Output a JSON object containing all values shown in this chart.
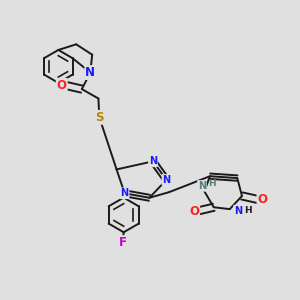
{
  "background_color": "#e0e0e0",
  "bond_color": "#1a1a1a",
  "bond_width": 1.4,
  "dbo": 0.012,
  "atom_colors": {
    "N": "#1a1aff",
    "O": "#ff2020",
    "S": "#b8860b",
    "F": "#cc00cc",
    "NH": "#508080",
    "C": "#1a1a1a"
  },
  "fs": 8.5,
  "fss": 7.0
}
